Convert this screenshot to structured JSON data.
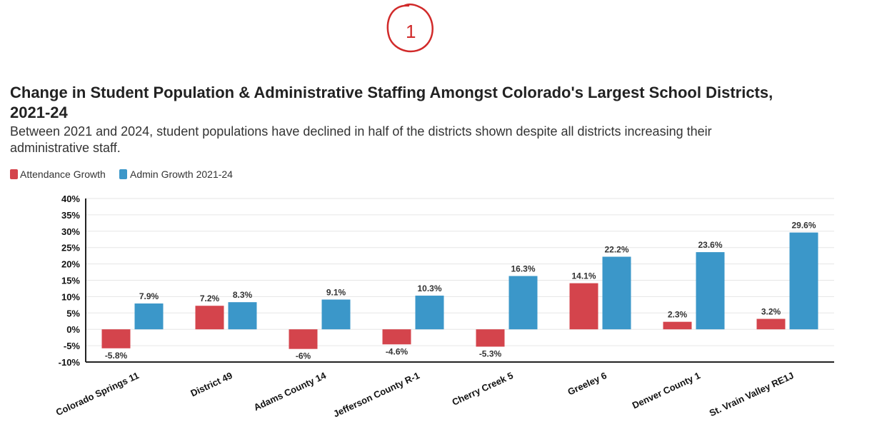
{
  "chart_data": {
    "type": "bar",
    "title_line1": "Change in Student Population & Administrative Staffing Amongst Colorado's Largest School Districts,",
    "title_line2": "2021-24",
    "subtitle_line1": "Between 2021 and 2024, student populations have declined in half of the districts shown despite all districts increasing their",
    "subtitle_line2": "administrative staff.",
    "categories": [
      "Colorado Springs 11",
      "District 49",
      "Adams County 14",
      "Jefferson County R-1",
      "Cherry Creek 5",
      "Greeley 6",
      "Denver County 1",
      "St. Vrain Valley RE1J"
    ],
    "series": [
      {
        "name": "Attendance Growth",
        "color": "#d4444c",
        "values": [
          -5.8,
          7.2,
          -6,
          -4.6,
          -5.3,
          14.1,
          2.3,
          3.2
        ],
        "labels": [
          "-5.8%",
          "7.2%",
          "-6%",
          "-4.6%",
          "-5.3%",
          "14.1%",
          "2.3%",
          "3.2%"
        ]
      },
      {
        "name": "Admin Growth 2021-24",
        "color": "#3b97c9",
        "values": [
          7.9,
          8.3,
          9.1,
          10.3,
          16.3,
          22.2,
          23.6,
          29.6
        ],
        "labels": [
          "7.9%",
          "8.3%",
          "9.1%",
          "10.3%",
          "16.3%",
          "22.2%",
          "23.6%",
          "29.6%"
        ]
      }
    ],
    "ylim": [
      -10,
      40
    ],
    "yticks": [
      40,
      35,
      30,
      25,
      20,
      15,
      10,
      5,
      0,
      -5,
      -10
    ],
    "ytick_labels": [
      "40%",
      "35%",
      "30%",
      "25%",
      "20%",
      "15%",
      "10%",
      "5%",
      "0%",
      "-5%",
      "-10%"
    ],
    "grid": true,
    "legend_position": "top-left"
  },
  "annotation": {
    "text": "1",
    "color": "#cc2222"
  }
}
